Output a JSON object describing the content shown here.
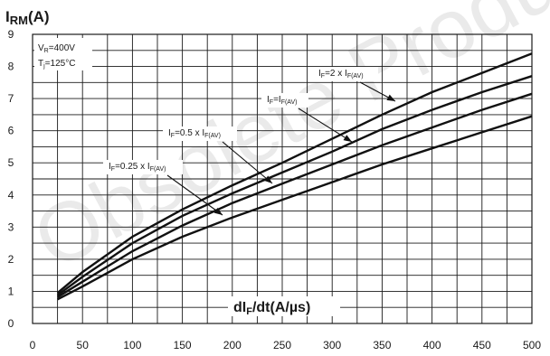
{
  "watermark": "Obsolete Product(s)",
  "chart_data": {
    "type": "line",
    "ylabel": {
      "main": "I",
      "sub": "RM",
      "unit": "(A)"
    },
    "xlabel": {
      "main": "dI",
      "sub": "F",
      "unit": "/dt(A/µs)"
    },
    "xlim": [
      0,
      500
    ],
    "ylim": [
      0,
      9
    ],
    "xticks": [
      0,
      50,
      100,
      150,
      200,
      250,
      300,
      350,
      400,
      450,
      500
    ],
    "yticks": [
      0,
      1,
      2,
      3,
      4,
      5,
      6,
      7,
      8,
      9
    ],
    "grid": true,
    "conditions": [
      {
        "main": "V",
        "sub": "R",
        "rest": "=400V"
      },
      {
        "main": "T",
        "sub": "j",
        "rest": "=125°C"
      }
    ],
    "series": [
      {
        "label": {
          "pre": "I",
          "preSub": "F",
          "mid": "=2 x I",
          "sub": "F(AV)"
        },
        "x": [
          25,
          50,
          100,
          150,
          200,
          250,
          300,
          350,
          400,
          450,
          500
        ],
        "y": [
          0.95,
          1.6,
          2.7,
          3.55,
          4.3,
          5.0,
          5.75,
          6.5,
          7.2,
          7.8,
          8.4
        ]
      },
      {
        "label": {
          "pre": "I",
          "preSub": "F",
          "mid": "=I",
          "sub": "F(AV)"
        },
        "x": [
          25,
          50,
          100,
          150,
          200,
          250,
          300,
          350,
          400,
          450,
          500
        ],
        "y": [
          0.88,
          1.45,
          2.5,
          3.35,
          4.05,
          4.7,
          5.35,
          6.05,
          6.65,
          7.2,
          7.7
        ]
      },
      {
        "label": {
          "pre": "I",
          "preSub": "F",
          "mid": "=0.5 x I",
          "sub": "F(AV)"
        },
        "x": [
          25,
          50,
          100,
          150,
          200,
          250,
          300,
          350,
          400,
          450,
          500
        ],
        "y": [
          0.82,
          1.3,
          2.25,
          3.05,
          3.75,
          4.35,
          4.95,
          5.55,
          6.1,
          6.65,
          7.15
        ]
      },
      {
        "label": {
          "pre": "I",
          "preSub": "F",
          "mid": "=0.25 x I",
          "sub": "F(AV)"
        },
        "x": [
          25,
          50,
          100,
          150,
          200,
          250,
          300,
          350,
          400,
          450,
          500
        ],
        "y": [
          0.75,
          1.15,
          2.0,
          2.7,
          3.3,
          3.85,
          4.4,
          4.95,
          5.45,
          5.95,
          6.45
        ]
      }
    ]
  }
}
